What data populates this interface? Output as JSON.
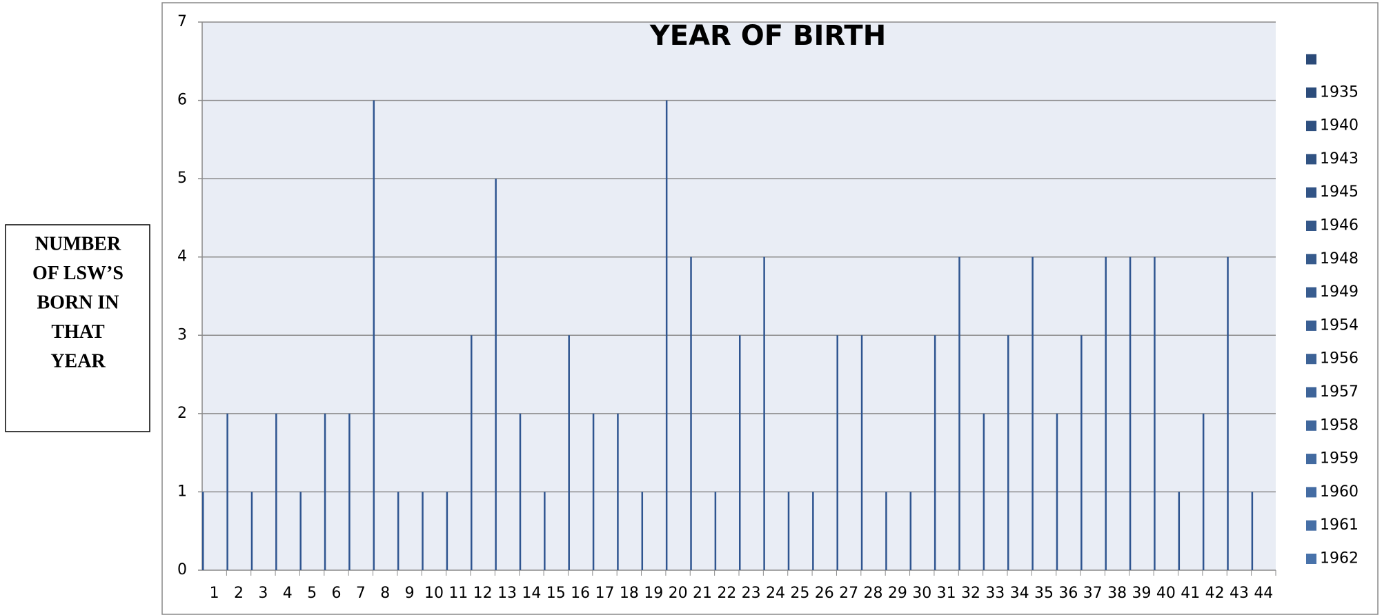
{
  "chart_data": {
    "type": "bar",
    "title": "YEAR OF BIRTH",
    "ylabel_lines": [
      "NUMBER",
      "OF LSW’S",
      "BORN IN",
      "THAT",
      "YEAR"
    ],
    "categories": [
      "1",
      "2",
      "3",
      "4",
      "5",
      "6",
      "7",
      "8",
      "9",
      "10",
      "11",
      "12",
      "13",
      "14",
      "15",
      "16",
      "17",
      "18",
      "19",
      "20",
      "21",
      "22",
      "23",
      "24",
      "25",
      "26",
      "27",
      "28",
      "29",
      "30",
      "31",
      "32",
      "33",
      "34",
      "35",
      "36",
      "37",
      "38",
      "39",
      "40",
      "41",
      "42",
      "43",
      "44"
    ],
    "values": [
      1,
      2,
      1,
      2,
      1,
      2,
      2,
      6,
      1,
      1,
      1,
      3,
      5,
      2,
      1,
      3,
      2,
      2,
      1,
      6,
      4,
      1,
      3,
      4,
      1,
      1,
      3,
      3,
      1,
      1,
      3,
      4,
      2,
      3,
      4,
      2,
      3,
      4,
      4,
      4,
      1,
      2,
      4,
      1
    ],
    "color": "#2f5590",
    "ylim": [
      0,
      7
    ],
    "yticks": [
      0,
      1,
      2,
      3,
      4,
      5,
      6,
      7
    ],
    "grid": true,
    "legend": [
      {
        "name": null,
        "color": "#2b4a78"
      },
      {
        "name": "1935",
        "color": "#2c4c7b"
      },
      {
        "name": "1940",
        "color": "#2e4f7f"
      },
      {
        "name": "1943",
        "color": "#305282"
      },
      {
        "name": "1945",
        "color": "#325486"
      },
      {
        "name": "1946",
        "color": "#345789"
      },
      {
        "name": "1948",
        "color": "#365a8c"
      },
      {
        "name": "1949",
        "color": "#385c8f"
      },
      {
        "name": "1954",
        "color": "#3a5f93"
      },
      {
        "name": "1956",
        "color": "#3c6296"
      },
      {
        "name": "1957",
        "color": "#3e6499"
      },
      {
        "name": "1958",
        "color": "#40679c"
      },
      {
        "name": "1959",
        "color": "#426aa0"
      },
      {
        "name": "1960",
        "color": "#446ca3"
      },
      {
        "name": "1961",
        "color": "#466fa6"
      },
      {
        "name": "1962",
        "color": "#4872aa"
      }
    ]
  }
}
